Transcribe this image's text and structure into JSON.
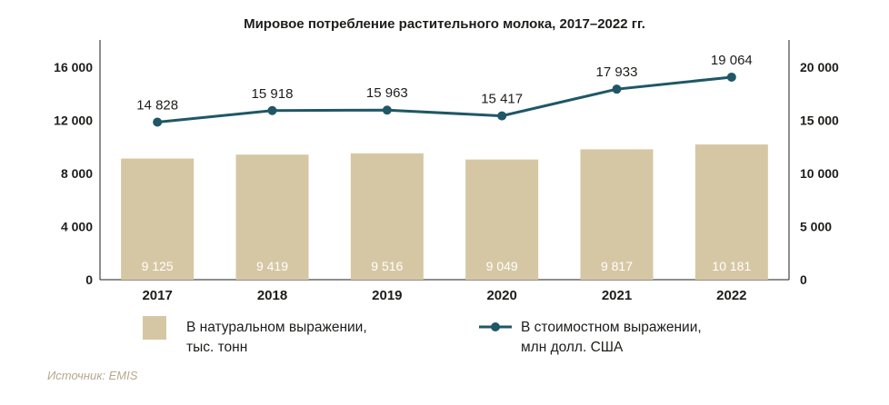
{
  "chart_data": {
    "type": "bar+line",
    "title": "Мировое потребление растительного молока, 2017–2022 гг.",
    "categories": [
      "2017",
      "2018",
      "2019",
      "2020",
      "2021",
      "2022"
    ],
    "series": [
      {
        "name": "В натуральном выражении, тыс. тонн",
        "name_lines": [
          "В натуральном выражении,",
          "тыс. тонн"
        ],
        "type": "bar",
        "axis": "left",
        "values": [
          9125,
          9419,
          9516,
          9049,
          9817,
          10181
        ],
        "labels": [
          "9 125",
          "9 419",
          "9 516",
          "9 049",
          "9 817",
          "10 181"
        ],
        "color": "#d6c7a4"
      },
      {
        "name": "В стоимостном выражении, млн долл. США",
        "name_lines": [
          "В стоимостном выражении,",
          "млн долл. США"
        ],
        "type": "line",
        "axis": "right",
        "values": [
          14828,
          15918,
          15963,
          15417,
          17933,
          19064
        ],
        "labels": [
          "14 828",
          "15 918",
          "15 963",
          "15 417",
          "17 933",
          "19 064"
        ],
        "color": "#1f5766"
      }
    ],
    "left_axis": {
      "ylim": [
        0,
        16000
      ],
      "ticks": [
        0,
        4000,
        8000,
        12000,
        16000
      ],
      "tick_labels": [
        "0",
        "4 000",
        "8 000",
        "12 000",
        "16 000"
      ]
    },
    "right_axis": {
      "ylim": [
        0,
        20000
      ],
      "ticks": [
        0,
        5000,
        10000,
        15000,
        20000
      ],
      "tick_labels": [
        "0",
        "5 000",
        "10 000",
        "15 000",
        "20 000"
      ]
    },
    "grid": false,
    "legend": "bottom",
    "source": "Источник: EMIS"
  }
}
